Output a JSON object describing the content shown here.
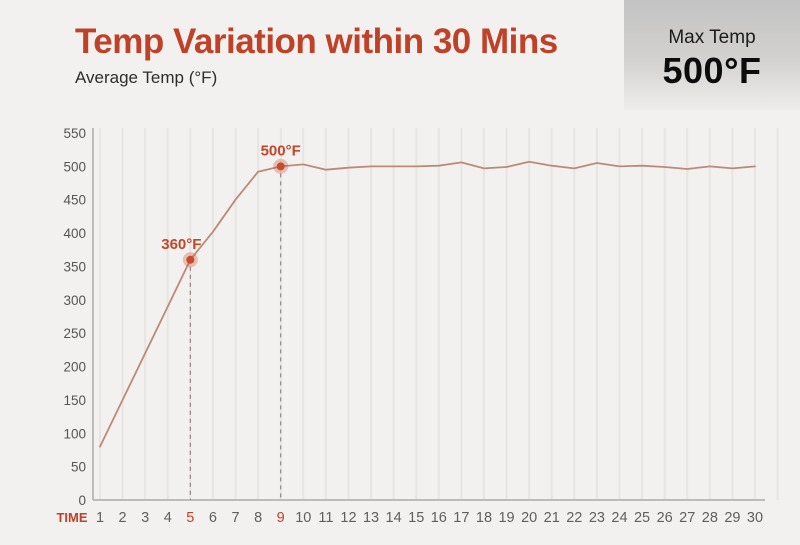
{
  "header": {
    "title": "Temp Variation within 30 Mins",
    "subtitle": "Average Temp (°F)"
  },
  "max_temp": {
    "label": "Max Temp",
    "value": "500°F"
  },
  "chart_data": {
    "type": "line",
    "title": "Temp Variation within 30 Mins",
    "xlabel": "TIME",
    "ylabel": "Average Temp (°F)",
    "x": [
      1,
      2,
      3,
      4,
      5,
      6,
      7,
      8,
      9,
      10,
      11,
      12,
      13,
      14,
      15,
      16,
      17,
      18,
      19,
      20,
      21,
      22,
      23,
      24,
      25,
      26,
      27,
      28,
      29,
      30
    ],
    "values": [
      80,
      150,
      220,
      290,
      360,
      402,
      450,
      492,
      500,
      503,
      495,
      498,
      500,
      500,
      500,
      501,
      506,
      497,
      499,
      507,
      501,
      497,
      505,
      500,
      501,
      499,
      496,
      500,
      497,
      500
    ],
    "yticks": [
      0,
      50,
      100,
      150,
      200,
      250,
      300,
      350,
      400,
      450,
      500,
      550
    ],
    "ylim": [
      0,
      550
    ],
    "grid": "vertical",
    "legend": "none",
    "highlighted_xticks": [
      5,
      9
    ],
    "annotations": [
      {
        "x": 5,
        "value": 360,
        "label": "360°F",
        "dx": -9
      },
      {
        "x": 9,
        "value": 500,
        "label": "500°F",
        "dx": 0
      }
    ]
  },
  "colors": {
    "background": "#f2f1ef",
    "accent": "#bf4127",
    "line": "#bd8a76",
    "annotation_dot": "#c94b2b",
    "annotation_text": "#c0472a",
    "dashed_guide": "#94857c",
    "axis": "#ababa9",
    "grid": "#e7e5e2",
    "ytick_text": "#565553",
    "xtick_text": "#605f5c"
  }
}
